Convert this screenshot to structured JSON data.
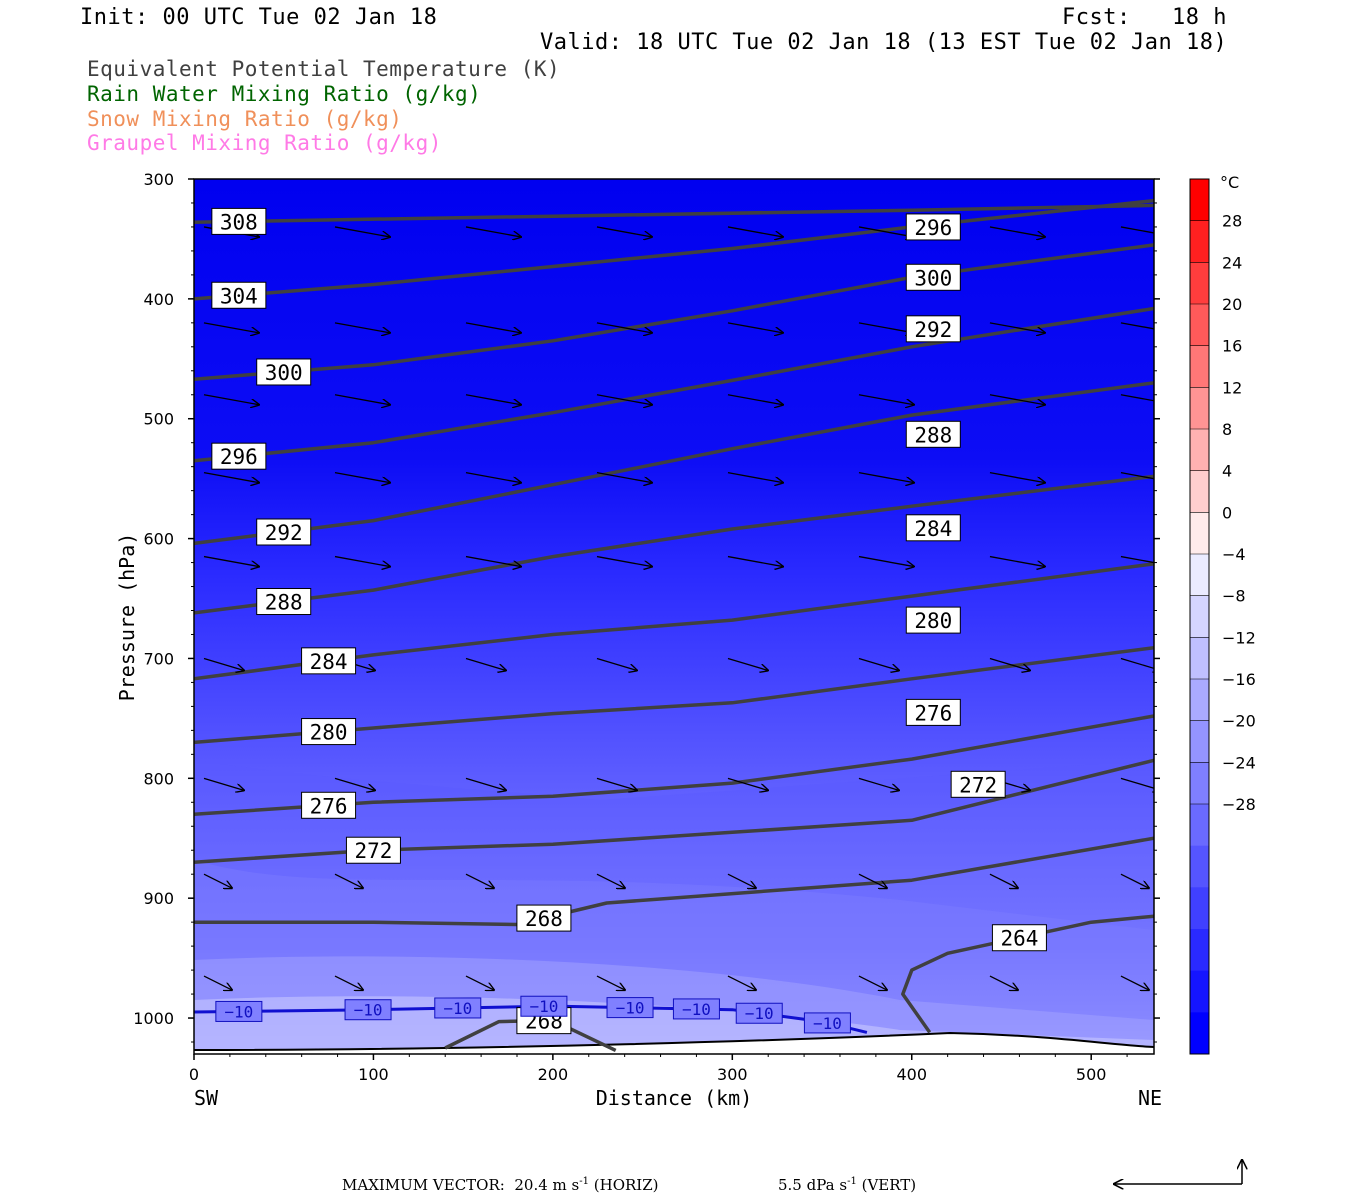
{
  "header": {
    "init": "Init: 00 UTC Tue 02 Jan 18",
    "fcst": "Fcst:   18 h",
    "valid": "Valid: 18 UTC Tue 02 Jan 18 (13 EST Tue 02 Jan 18)"
  },
  "legend": [
    {
      "label": "Equivalent Potential Temperature (K)",
      "color": "#404040"
    },
    {
      "label": "Rain Water Mixing Ratio (g/kg)",
      "color": "#006400"
    },
    {
      "label": "Snow Mixing Ratio (g/kg)",
      "color": "#f0905a"
    },
    {
      "label": "Graupel Mixing Ratio (g/kg)",
      "color": "#ff7ae6"
    }
  ],
  "footer": {
    "max_vector_label": "MAXIMUM VECTOR:",
    "horiz_value": "20.4 m s",
    "horiz_unit": "(HORIZ)",
    "vert_value": "5.5 dPa s",
    "vert_unit": "(VERT)",
    "exponent": "-1"
  },
  "chart_data": {
    "type": "heatmap",
    "title": "",
    "xlabel": "Distance (km)",
    "ylabel": "Pressure (hPa)",
    "x_ticks": [
      0,
      100,
      200,
      300,
      400,
      500
    ],
    "y_ticks": [
      300,
      400,
      500,
      600,
      700,
      800,
      900,
      1000
    ],
    "xlim": [
      0,
      535
    ],
    "ylim": [
      1030,
      300
    ],
    "left_end_label": "SW",
    "right_end_label": "NE",
    "colorbar": {
      "unit": "°C",
      "labels": [
        "28",
        "24",
        "20",
        "16",
        "12",
        "8",
        "4",
        "0",
        "−4",
        "−8",
        "−12",
        "−16",
        "−20",
        "−24",
        "−28"
      ],
      "levels": [
        28,
        24,
        20,
        16,
        12,
        8,
        4,
        0,
        -4,
        -8,
        -12,
        -16,
        -20,
        -24,
        -28
      ],
      "colors": [
        "#ff0000",
        "#ff2020",
        "#ff3d3d",
        "#ff5a5a",
        "#ff7777",
        "#ff9494",
        "#ffb1b1",
        "#ffcece",
        "#ffebeb",
        "#ebebff",
        "#d5d5ff",
        "#c0c0ff",
        "#aaaaff",
        "#9494ff",
        "#7f7fff",
        "#6a6aff",
        "#5555ff",
        "#4040ff",
        "#2a2aff",
        "#1515ff",
        "#0000ff"
      ]
    },
    "theta_e_contours": [
      {
        "label": "308",
        "points": [
          [
            0,
            336
          ],
          [
            200,
            331
          ],
          [
            400,
            326
          ],
          [
            535,
            322
          ]
        ]
      },
      {
        "label": "304",
        "points": [
          [
            0,
            400
          ],
          [
            100,
            388
          ],
          [
            200,
            373
          ],
          [
            300,
            358
          ],
          [
            400,
            340
          ],
          [
            535,
            318
          ]
        ]
      },
      {
        "label": "300",
        "points": [
          [
            0,
            467
          ],
          [
            100,
            455
          ],
          [
            200,
            435
          ],
          [
            300,
            410
          ],
          [
            400,
            382
          ],
          [
            535,
            355
          ]
        ]
      },
      {
        "label": "296",
        "points": [
          [
            0,
            535
          ],
          [
            100,
            520
          ],
          [
            200,
            495
          ],
          [
            300,
            468
          ],
          [
            400,
            440
          ],
          [
            535,
            408
          ]
        ]
      },
      {
        "label": "292",
        "points": [
          [
            0,
            604
          ],
          [
            100,
            585
          ],
          [
            200,
            555
          ],
          [
            300,
            525
          ],
          [
            400,
            497
          ],
          [
            535,
            470
          ]
        ]
      },
      {
        "label": "288",
        "points": [
          [
            0,
            662
          ],
          [
            100,
            643
          ],
          [
            200,
            615
          ],
          [
            300,
            592
          ],
          [
            400,
            573
          ],
          [
            535,
            548
          ]
        ]
      },
      {
        "label": "284",
        "points": [
          [
            0,
            717
          ],
          [
            100,
            697
          ],
          [
            200,
            680
          ],
          [
            300,
            668
          ],
          [
            400,
            648
          ],
          [
            535,
            621
          ]
        ]
      },
      {
        "label": "280",
        "points": [
          [
            0,
            770
          ],
          [
            100,
            758
          ],
          [
            200,
            746
          ],
          [
            300,
            737
          ],
          [
            400,
            717
          ],
          [
            535,
            691
          ]
        ]
      },
      {
        "label": "276",
        "points": [
          [
            0,
            830
          ],
          [
            100,
            820
          ],
          [
            200,
            815
          ],
          [
            300,
            804
          ],
          [
            400,
            784
          ],
          [
            535,
            748
          ]
        ]
      },
      {
        "label": "272",
        "points": [
          [
            0,
            870
          ],
          [
            100,
            860
          ],
          [
            200,
            855
          ],
          [
            300,
            845
          ],
          [
            400,
            835
          ],
          [
            535,
            785
          ]
        ]
      },
      {
        "label": "268",
        "points": [
          [
            0,
            920
          ],
          [
            100,
            920
          ],
          [
            180,
            922
          ],
          [
            230,
            904
          ],
          [
            400,
            885
          ],
          [
            535,
            850
          ]
        ]
      },
      {
        "label": "264",
        "points": [
          [
            410,
            1012
          ],
          [
            395,
            980
          ],
          [
            400,
            960
          ],
          [
            420,
            946
          ],
          [
            500,
            920
          ],
          [
            535,
            915
          ]
        ]
      },
      {
        "label": "268",
        "points": [
          [
            140,
            1025
          ],
          [
            170,
            1003
          ],
          [
            200,
            1002
          ],
          [
            235,
            1027
          ]
        ]
      }
    ],
    "temperature_contours": [
      {
        "label": "−10",
        "points": [
          [
            0,
            995
          ],
          [
            100,
            993
          ],
          [
            200,
            990
          ],
          [
            300,
            993
          ],
          [
            350,
            1003
          ],
          [
            375,
            1012
          ]
        ]
      }
    ]
  }
}
